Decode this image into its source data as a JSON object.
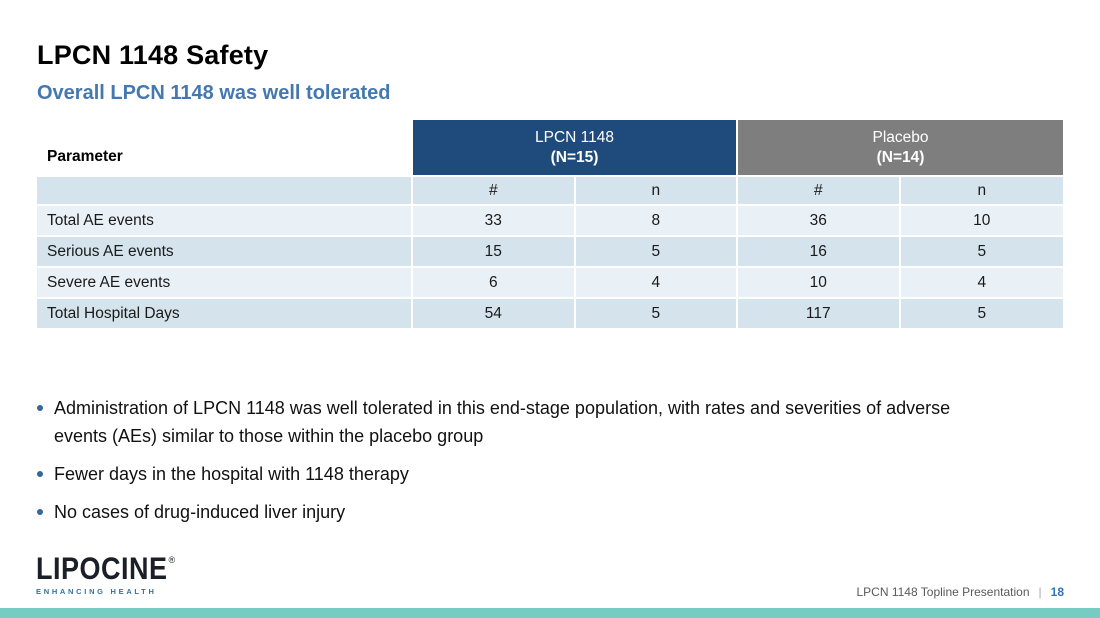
{
  "slide": {
    "title": "LPCN 1148 Safety",
    "subtitle": "Overall LPCN 1148 was well tolerated"
  },
  "table": {
    "parameter_header": "Parameter",
    "groups": [
      {
        "line1": "LPCN 1148",
        "line2": "(N=15)"
      },
      {
        "line1": "Placebo",
        "line2": "(N=14)"
      }
    ],
    "subheaders": [
      "#",
      "n",
      "#",
      "n"
    ],
    "rows": [
      {
        "label": "Total AE events",
        "values": [
          "33",
          "8",
          "36",
          "10"
        ]
      },
      {
        "label": "Serious AE events",
        "values": [
          "15",
          "5",
          "16",
          "5"
        ]
      },
      {
        "label": "Severe AE events",
        "values": [
          "6",
          "4",
          "10",
          "4"
        ]
      },
      {
        "label": "Total Hospital Days",
        "values": [
          "54",
          "5",
          "117",
          "5"
        ]
      }
    ]
  },
  "bullets": [
    "Administration of LPCN 1148 was well tolerated in this end-stage population, with rates and severities of adverse events (AEs) similar to those within the placebo group",
    "Fewer days in the hospital with 1148 therapy",
    "No cases of drug-induced liver injury"
  ],
  "footer": {
    "logo_wordmark": "LIPOCINE",
    "logo_registered": "®",
    "logo_tagline": "ENHANCING HEALTH",
    "deck_title": "LPCN 1148 Topline Presentation",
    "divider": "|",
    "page_number": "18"
  },
  "colors": {
    "subtitle_blue": "#4478AF",
    "table_header_blue": "#1F4B7C",
    "table_header_gray": "#7E7E7E",
    "row_dark": "#D4E3EC",
    "row_light": "#EAF1F6",
    "bullet_dot_blue": "#35689A",
    "page_number_blue": "#2E74B5",
    "bottom_bar_teal": "#76CCC3"
  }
}
